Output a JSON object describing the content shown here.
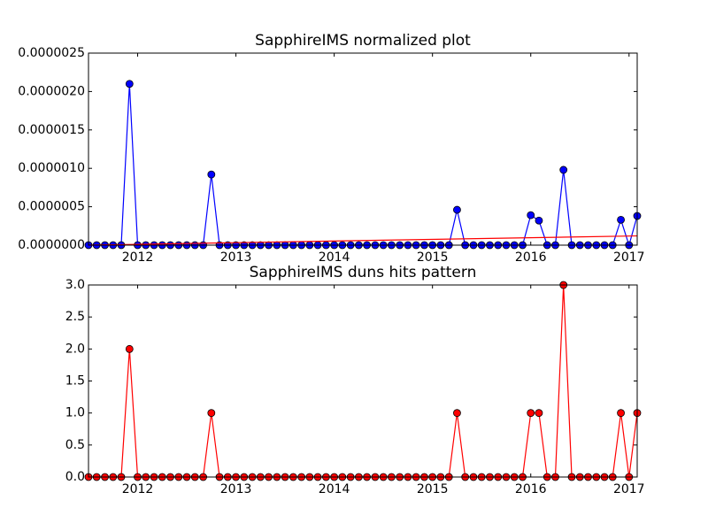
{
  "chart_data": [
    {
      "type": "line",
      "title": "SapphireIMS normalized plot",
      "x": [
        2011.5,
        2011.583,
        2011.667,
        2011.75,
        2011.833,
        2011.917,
        2012,
        2012.083,
        2012.167,
        2012.25,
        2012.333,
        2012.417,
        2012.5,
        2012.583,
        2012.667,
        2012.75,
        2012.833,
        2012.917,
        2013,
        2013.083,
        2013.167,
        2013.25,
        2013.333,
        2013.417,
        2013.5,
        2013.583,
        2013.667,
        2013.75,
        2013.833,
        2013.917,
        2014,
        2014.083,
        2014.167,
        2014.25,
        2014.333,
        2014.417,
        2014.5,
        2014.583,
        2014.667,
        2014.75,
        2014.833,
        2014.917,
        2015,
        2015.083,
        2015.167,
        2015.25,
        2015.333,
        2015.417,
        2015.5,
        2015.583,
        2015.667,
        2015.75,
        2015.833,
        2015.917,
        2016,
        2016.083,
        2016.167,
        2016.25,
        2016.333,
        2016.417,
        2016.5,
        2016.583,
        2016.667,
        2016.75,
        2016.833,
        2016.917,
        2017,
        2017.083
      ],
      "series": [
        {
          "color": "#0000ff",
          "marker": "o",
          "values": [
            0,
            0,
            0,
            0,
            0,
            2.1e-06,
            0,
            0,
            0,
            0,
            0,
            0,
            0,
            0,
            0,
            9.2e-07,
            0,
            0,
            0,
            0,
            0,
            0,
            0,
            0,
            0,
            0,
            0,
            0,
            0,
            0,
            0,
            0,
            0,
            0,
            0,
            0,
            0,
            0,
            0,
            0,
            0,
            0,
            0,
            0,
            0,
            4.6e-07,
            0,
            0,
            0,
            0,
            0,
            0,
            0,
            0,
            3.9e-07,
            3.2e-07,
            0,
            0,
            9.8e-07,
            0,
            0,
            0,
            0,
            0,
            0,
            3.3e-07,
            0,
            3.8e-07
          ]
        },
        {
          "color": "#ff0000",
          "x": [
            2011.5,
            2017.083
          ],
          "values": [
            0,
            1.2e-07
          ]
        }
      ],
      "xlim": [
        2011.5,
        2017.083
      ],
      "xticks": [
        2012,
        2013,
        2014,
        2015,
        2016,
        2017
      ],
      "ylim": [
        0,
        2.5e-06
      ],
      "yticks": [
        {
          "value": 0,
          "label": "0.0000000"
        },
        {
          "value": 5e-07,
          "label": "0.0000005"
        },
        {
          "value": 1e-06,
          "label": "0.0000010"
        },
        {
          "value": 1.5e-06,
          "label": "0.0000015"
        },
        {
          "value": 2e-06,
          "label": "0.0000020"
        },
        {
          "value": 2.5e-06,
          "label": "0.0000025"
        }
      ]
    },
    {
      "type": "line",
      "title": "SapphireIMS duns hits pattern",
      "x": [
        2011.5,
        2011.583,
        2011.667,
        2011.75,
        2011.833,
        2011.917,
        2012,
        2012.083,
        2012.167,
        2012.25,
        2012.333,
        2012.417,
        2012.5,
        2012.583,
        2012.667,
        2012.75,
        2012.833,
        2012.917,
        2013,
        2013.083,
        2013.167,
        2013.25,
        2013.333,
        2013.417,
        2013.5,
        2013.583,
        2013.667,
        2013.75,
        2013.833,
        2013.917,
        2014,
        2014.083,
        2014.167,
        2014.25,
        2014.333,
        2014.417,
        2014.5,
        2014.583,
        2014.667,
        2014.75,
        2014.833,
        2014.917,
        2015,
        2015.083,
        2015.167,
        2015.25,
        2015.333,
        2015.417,
        2015.5,
        2015.583,
        2015.667,
        2015.75,
        2015.833,
        2015.917,
        2016,
        2016.083,
        2016.167,
        2016.25,
        2016.333,
        2016.417,
        2016.5,
        2016.583,
        2016.667,
        2016.75,
        2016.833,
        2016.917,
        2017,
        2017.083
      ],
      "series": [
        {
          "color": "#ff0000",
          "marker": "o",
          "values": [
            0,
            0,
            0,
            0,
            0,
            2,
            0,
            0,
            0,
            0,
            0,
            0,
            0,
            0,
            0,
            1,
            0,
            0,
            0,
            0,
            0,
            0,
            0,
            0,
            0,
            0,
            0,
            0,
            0,
            0,
            0,
            0,
            0,
            0,
            0,
            0,
            0,
            0,
            0,
            0,
            0,
            0,
            0,
            0,
            0,
            1,
            0,
            0,
            0,
            0,
            0,
            0,
            0,
            0,
            1,
            1,
            0,
            0,
            3,
            0,
            0,
            0,
            0,
            0,
            0,
            1,
            0,
            1
          ]
        }
      ],
      "xlim": [
        2011.5,
        2017.083
      ],
      "xticks": [
        2012,
        2013,
        2014,
        2015,
        2016,
        2017
      ],
      "ylim": [
        0,
        3
      ],
      "yticks": [
        {
          "value": 0,
          "label": "0.0"
        },
        0.5,
        {
          "value": 1,
          "label": "1.0"
        },
        1.5,
        {
          "value": 2,
          "label": "2.0"
        },
        2.5,
        {
          "value": 3,
          "label": "3.0"
        }
      ]
    }
  ]
}
